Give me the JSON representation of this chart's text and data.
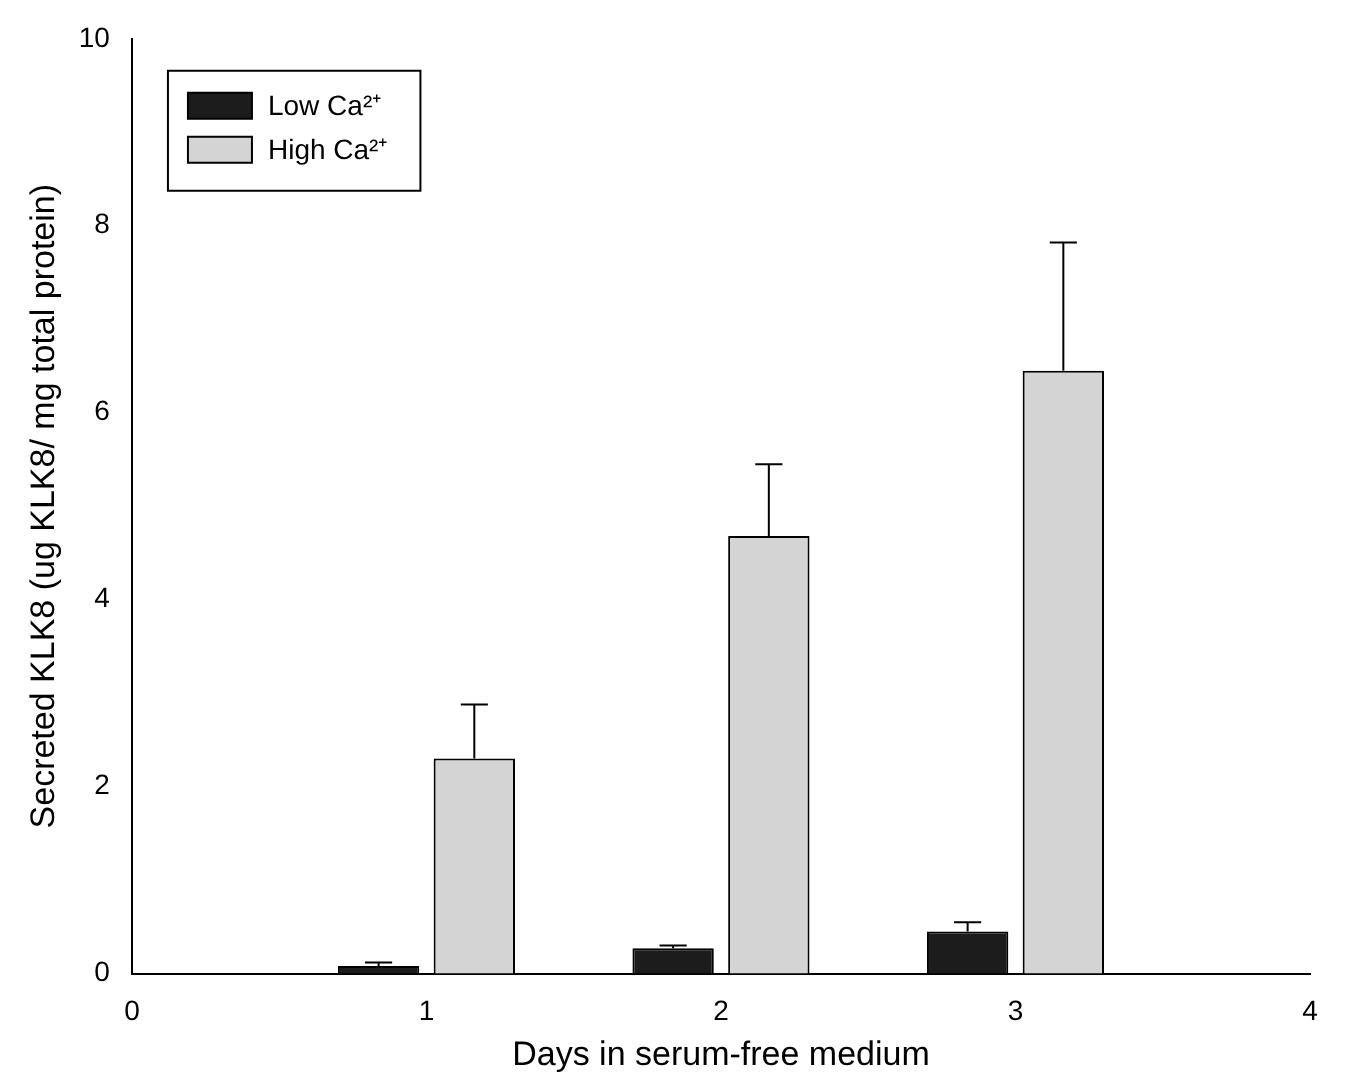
{
  "chart_data": {
    "type": "bar",
    "xlabel": "Days in serum-free medium",
    "ylabel": "Secreted KLK8 (ug KLK8/ mg total protein)",
    "x": [
      1,
      2,
      3
    ],
    "series": [
      {
        "name": "Low Ca²⁺",
        "color": "#1c1c1c",
        "values": [
          0.08,
          0.27,
          0.45
        ],
        "errors": [
          [
            0.08,
            0.12
          ],
          [
            0.27,
            0.3
          ],
          [
            0.45,
            0.55
          ]
        ]
      },
      {
        "name": "High Ca²⁺",
        "color": "#d4d4d4",
        "values": [
          2.3,
          4.68,
          6.45
        ],
        "errors": [
          [
            2.3,
            2.88
          ],
          [
            4.68,
            5.45
          ],
          [
            6.45,
            7.82
          ]
        ]
      }
    ],
    "xlim": [
      0,
      4
    ],
    "xticks": [
      0,
      1,
      2,
      3,
      4
    ],
    "ylim": [
      0,
      10
    ],
    "yticks": [
      0,
      2,
      4,
      6,
      8,
      10
    ],
    "grid": false,
    "legend": "top left"
  }
}
